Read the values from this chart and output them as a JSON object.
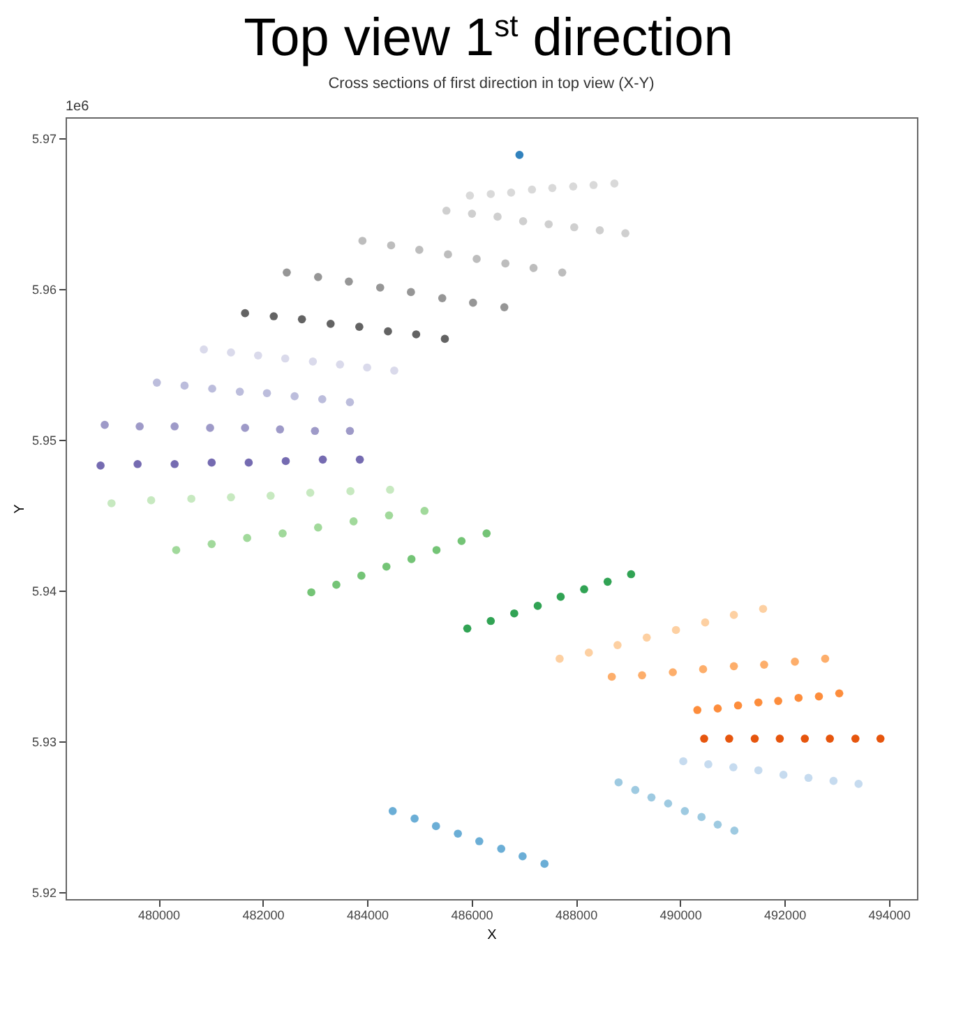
{
  "chart_data": {
    "type": "scatter",
    "title": "Top view 1$^{st}$ direction",
    "subtitle": "Cross sections of first direction in top view (X-Y)",
    "xlabel": "X",
    "ylabel": "Y",
    "annotations": [
      "1e6"
    ],
    "xlim": [
      478220,
      494540
    ],
    "ylim": [
      5.91956,
      5.97139
    ],
    "xticks": [
      480000,
      482000,
      484000,
      486000,
      488000,
      490000,
      492000,
      494000
    ],
    "yticks": [
      5.92,
      5.93,
      5.94,
      5.95,
      5.96,
      5.97
    ],
    "grid": false,
    "marker": "circle",
    "series": [
      {
        "color": "#3182bd",
        "x": [
          486920
        ],
        "values": [
          5.9689
        ]
      },
      {
        "color": "#d9d9d9",
        "x": [
          485970,
          486370,
          486760,
          487160,
          487550,
          487950,
          488340,
          488740
        ],
        "values": [
          5.9662,
          5.9663,
          5.9664,
          5.9666,
          5.9667,
          5.9668,
          5.9669,
          5.967
        ]
      },
      {
        "color": "#cfcfcf",
        "x": [
          485520,
          486010,
          486500,
          486990,
          487480,
          487970,
          488460,
          488950
        ],
        "values": [
          5.9652,
          5.965,
          5.9648,
          5.9645,
          5.9643,
          5.9641,
          5.9639,
          5.9637
        ]
      },
      {
        "color": "#bdbdbd",
        "x": [
          483910,
          484460,
          485000,
          485550,
          486100,
          486650,
          487190,
          487740
        ],
        "values": [
          5.9632,
          5.9629,
          5.9626,
          5.9623,
          5.962,
          5.9617,
          5.9614,
          5.9611
        ]
      },
      {
        "color": "#969696",
        "x": [
          482460,
          483060,
          483650,
          484250,
          484840,
          485440,
          486030,
          486630
        ],
        "values": [
          5.9611,
          5.9608,
          5.9605,
          5.9601,
          5.9598,
          5.9594,
          5.9591,
          5.9588
        ]
      },
      {
        "color": "#636363",
        "x": [
          481660,
          482210,
          482750,
          483300,
          483850,
          484400,
          484940,
          485490
        ],
        "values": [
          5.9584,
          5.9582,
          5.958,
          5.9577,
          5.9575,
          5.9572,
          5.957,
          5.9567
        ]
      },
      {
        "color": "#dadaeb",
        "x": [
          480870,
          481390,
          481910,
          482430,
          482960,
          483480,
          484000,
          484520
        ],
        "values": [
          5.956,
          5.9558,
          5.9556,
          5.9554,
          5.9552,
          5.955,
          5.9548,
          5.9546
        ]
      },
      {
        "color": "#bcbddc",
        "x": [
          479970,
          480500,
          481030,
          481560,
          482080,
          482610,
          483140,
          483670
        ],
        "values": [
          5.9538,
          5.9536,
          5.9534,
          5.9532,
          5.9531,
          5.9529,
          5.9527,
          5.9525
        ]
      },
      {
        "color": "#9e9ac8",
        "x": [
          478970,
          479640,
          480310,
          480990,
          481660,
          482330,
          483000,
          483670
        ],
        "values": [
          5.951,
          5.9509,
          5.9509,
          5.9508,
          5.9508,
          5.9507,
          5.9506,
          5.9506
        ]
      },
      {
        "color": "#756bb1",
        "x": [
          478890,
          479600,
          480310,
          481020,
          481730,
          482440,
          483150,
          483860
        ],
        "values": [
          5.9483,
          5.9484,
          5.9484,
          5.9485,
          5.9485,
          5.9486,
          5.9487,
          5.9487
        ]
      },
      {
        "color": "#c7e9c0",
        "x": [
          479100,
          479860,
          480630,
          481390,
          482150,
          482910,
          483680,
          484440
        ],
        "values": [
          5.9458,
          5.946,
          5.9461,
          5.9462,
          5.9463,
          5.9465,
          5.9466,
          5.9467
        ]
      },
      {
        "color": "#a1d99b",
        "x": [
          480340,
          481020,
          481700,
          482380,
          483060,
          483740,
          484420,
          485100
        ],
        "values": [
          5.9427,
          5.9431,
          5.9435,
          5.9438,
          5.9442,
          5.9446,
          5.945,
          5.9453
        ]
      },
      {
        "color": "#74c476",
        "x": [
          482930,
          483410,
          483890,
          484370,
          484850,
          485330,
          485810,
          486290
        ],
        "values": [
          5.9399,
          5.9404,
          5.941,
          5.9416,
          5.9421,
          5.9427,
          5.9433,
          5.9438
        ]
      },
      {
        "color": "#31a354",
        "x": [
          485920,
          486370,
          486820,
          487270,
          487710,
          488160,
          488610,
          489060
        ],
        "values": [
          5.9375,
          5.938,
          5.9385,
          5.939,
          5.9396,
          5.9401,
          5.9406,
          5.9411
        ]
      },
      {
        "color": "#fdd0a2",
        "x": [
          487690,
          488250,
          488800,
          489360,
          489920,
          490480,
          491030,
          491590
        ],
        "values": [
          5.9355,
          5.9359,
          5.9364,
          5.9369,
          5.9374,
          5.9379,
          5.9384,
          5.9388
        ]
      },
      {
        "color": "#fdae6b",
        "x": [
          488690,
          489270,
          489860,
          490440,
          491030,
          491610,
          492200,
          492780
        ],
        "values": [
          5.9343,
          5.9344,
          5.9346,
          5.9348,
          5.935,
          5.9351,
          5.9353,
          5.9355
        ]
      },
      {
        "color": "#fd8d3c",
        "x": [
          490330,
          490720,
          491110,
          491500,
          491880,
          492270,
          492660,
          493050
        ],
        "values": [
          5.9321,
          5.9322,
          5.9324,
          5.9326,
          5.9327,
          5.9329,
          5.933,
          5.9332
        ]
      },
      {
        "color": "#e6550d",
        "x": [
          490460,
          490940,
          491430,
          491910,
          492390,
          492870,
          493360,
          493840
        ],
        "values": [
          5.9302,
          5.9302,
          5.9302,
          5.9302,
          5.9302,
          5.9302,
          5.9302,
          5.9302
        ]
      },
      {
        "color": "#c6dbef",
        "x": [
          490060,
          490540,
          491020,
          491500,
          491980,
          492460,
          492940,
          493420
        ],
        "values": [
          5.9287,
          5.9285,
          5.9283,
          5.9281,
          5.9278,
          5.9276,
          5.9274,
          5.9272
        ]
      },
      {
        "color": "#9ecae1",
        "x": [
          488820,
          489140,
          489450,
          489770,
          490090,
          490410,
          490720,
          491040
        ],
        "values": [
          5.9273,
          5.9268,
          5.9263,
          5.9259,
          5.9254,
          5.925,
          5.9245,
          5.9241
        ]
      },
      {
        "color": "#6baed6",
        "x": [
          484490,
          484910,
          485320,
          485740,
          486150,
          486570,
          486980,
          487400
        ],
        "values": [
          5.9254,
          5.9249,
          5.9244,
          5.9239,
          5.9234,
          5.9229,
          5.9224,
          5.9219
        ]
      }
    ]
  }
}
